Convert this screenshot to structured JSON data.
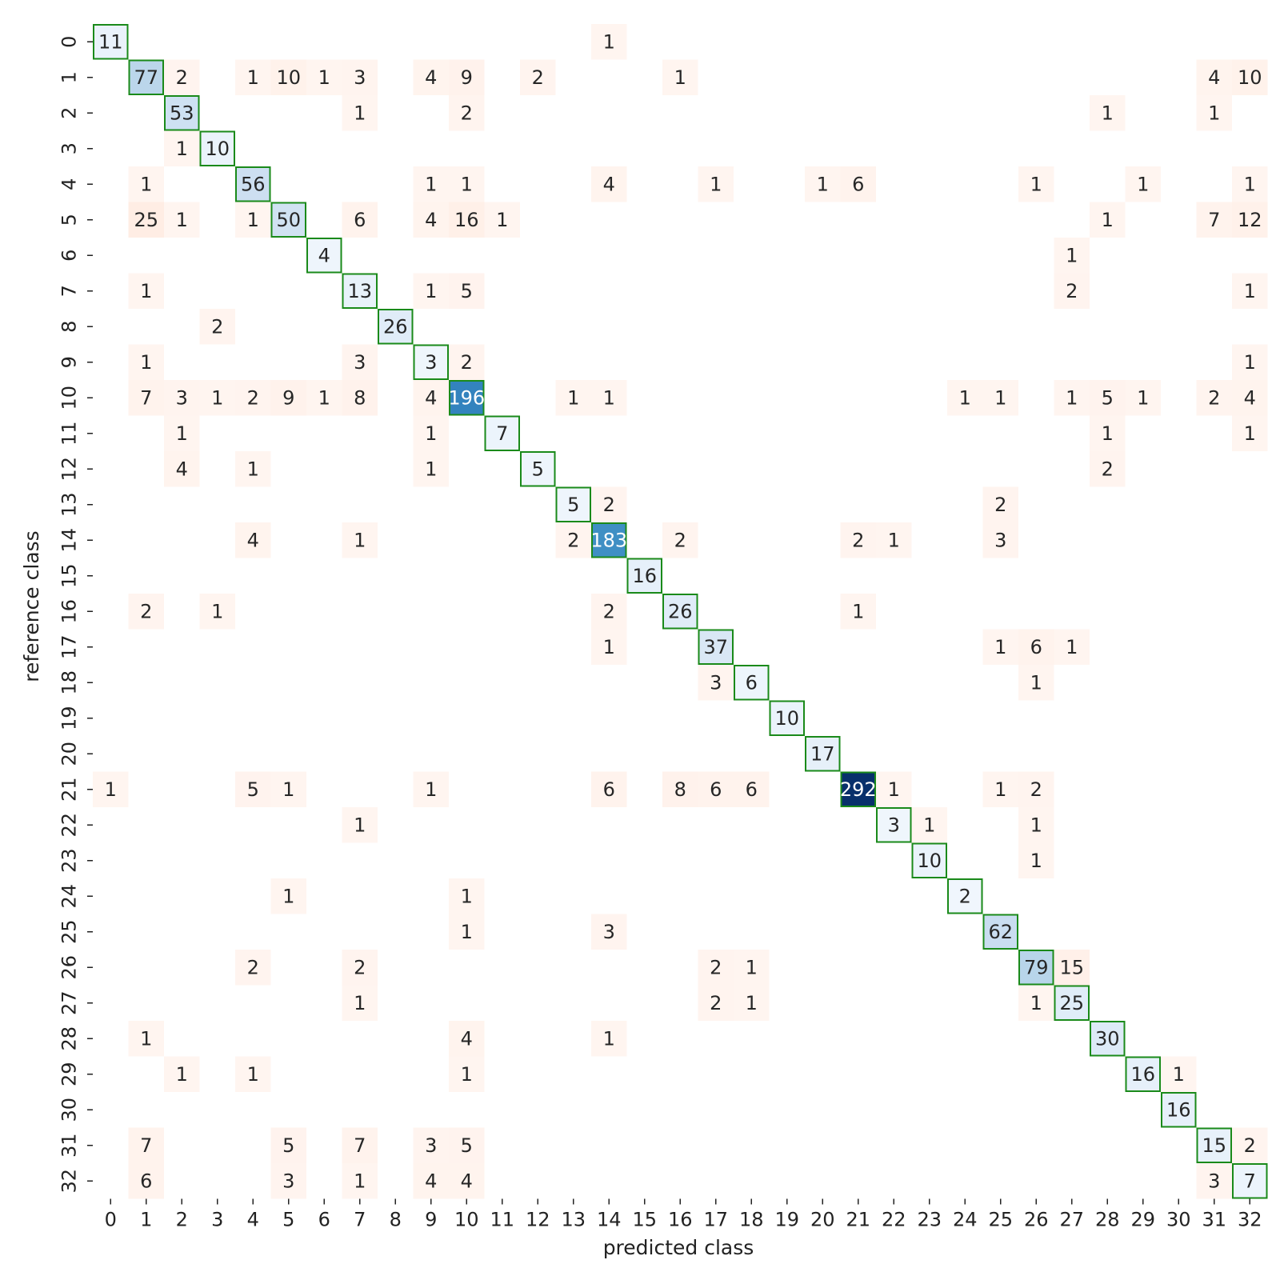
{
  "chart_data": {
    "type": "heatmap",
    "xlabel": "predicted class",
    "ylabel": "reference class",
    "x_ticks": [
      "0",
      "1",
      "2",
      "3",
      "4",
      "5",
      "6",
      "7",
      "8",
      "9",
      "10",
      "11",
      "12",
      "13",
      "14",
      "15",
      "16",
      "17",
      "18",
      "19",
      "20",
      "21",
      "22",
      "23",
      "24",
      "25",
      "26",
      "27",
      "28",
      "29",
      "30",
      "31",
      "32"
    ],
    "y_ticks": [
      "0",
      "1",
      "2",
      "3",
      "4",
      "5",
      "6",
      "7",
      "8",
      "9",
      "10",
      "11",
      "12",
      "13",
      "14",
      "15",
      "16",
      "17",
      "18",
      "19",
      "20",
      "21",
      "22",
      "23",
      "24",
      "25",
      "26",
      "27",
      "28",
      "29",
      "30",
      "31",
      "32"
    ],
    "diagonal_colormap": "Blues",
    "off_diagonal_colormap": "Reds",
    "diagonal_outline_color": "#1a8a1a",
    "diagonal_max_color": "#08306b",
    "off_diagonal_color": "#fff3ee",
    "values": [
      {
        "row": 0,
        "col": 0,
        "value": 11
      },
      {
        "row": 0,
        "col": 14,
        "value": 1
      },
      {
        "row": 1,
        "col": 1,
        "value": 77
      },
      {
        "row": 1,
        "col": 2,
        "value": 2
      },
      {
        "row": 1,
        "col": 4,
        "value": 1
      },
      {
        "row": 1,
        "col": 5,
        "value": 10
      },
      {
        "row": 1,
        "col": 6,
        "value": 1
      },
      {
        "row": 1,
        "col": 7,
        "value": 3
      },
      {
        "row": 1,
        "col": 9,
        "value": 4
      },
      {
        "row": 1,
        "col": 10,
        "value": 9
      },
      {
        "row": 1,
        "col": 12,
        "value": 2
      },
      {
        "row": 1,
        "col": 16,
        "value": 1
      },
      {
        "row": 1,
        "col": 31,
        "value": 4
      },
      {
        "row": 1,
        "col": 32,
        "value": 10
      },
      {
        "row": 2,
        "col": 2,
        "value": 53
      },
      {
        "row": 2,
        "col": 7,
        "value": 1
      },
      {
        "row": 2,
        "col": 10,
        "value": 2
      },
      {
        "row": 2,
        "col": 28,
        "value": 1
      },
      {
        "row": 2,
        "col": 31,
        "value": 1
      },
      {
        "row": 3,
        "col": 2,
        "value": 1
      },
      {
        "row": 3,
        "col": 3,
        "value": 10
      },
      {
        "row": 4,
        "col": 1,
        "value": 1
      },
      {
        "row": 4,
        "col": 4,
        "value": 56
      },
      {
        "row": 4,
        "col": 9,
        "value": 1
      },
      {
        "row": 4,
        "col": 10,
        "value": 1
      },
      {
        "row": 4,
        "col": 14,
        "value": 4
      },
      {
        "row": 4,
        "col": 17,
        "value": 1
      },
      {
        "row": 4,
        "col": 20,
        "value": 1
      },
      {
        "row": 4,
        "col": 21,
        "value": 6
      },
      {
        "row": 4,
        "col": 26,
        "value": 1
      },
      {
        "row": 4,
        "col": 29,
        "value": 1
      },
      {
        "row": 4,
        "col": 32,
        "value": 1
      },
      {
        "row": 5,
        "col": 1,
        "value": 25
      },
      {
        "row": 5,
        "col": 2,
        "value": 1
      },
      {
        "row": 5,
        "col": 4,
        "value": 1
      },
      {
        "row": 5,
        "col": 5,
        "value": 50
      },
      {
        "row": 5,
        "col": 7,
        "value": 6
      },
      {
        "row": 5,
        "col": 9,
        "value": 4
      },
      {
        "row": 5,
        "col": 10,
        "value": 16
      },
      {
        "row": 5,
        "col": 11,
        "value": 1
      },
      {
        "row": 5,
        "col": 28,
        "value": 1
      },
      {
        "row": 5,
        "col": 31,
        "value": 7
      },
      {
        "row": 5,
        "col": 32,
        "value": 12
      },
      {
        "row": 6,
        "col": 6,
        "value": 4
      },
      {
        "row": 6,
        "col": 27,
        "value": 1
      },
      {
        "row": 7,
        "col": 1,
        "value": 1
      },
      {
        "row": 7,
        "col": 7,
        "value": 13
      },
      {
        "row": 7,
        "col": 9,
        "value": 1
      },
      {
        "row": 7,
        "col": 10,
        "value": 5
      },
      {
        "row": 7,
        "col": 27,
        "value": 2
      },
      {
        "row": 7,
        "col": 32,
        "value": 1
      },
      {
        "row": 8,
        "col": 3,
        "value": 2
      },
      {
        "row": 8,
        "col": 8,
        "value": 26
      },
      {
        "row": 9,
        "col": 1,
        "value": 1
      },
      {
        "row": 9,
        "col": 7,
        "value": 3
      },
      {
        "row": 9,
        "col": 9,
        "value": 3
      },
      {
        "row": 9,
        "col": 10,
        "value": 2
      },
      {
        "row": 9,
        "col": 32,
        "value": 1
      },
      {
        "row": 10,
        "col": 1,
        "value": 7
      },
      {
        "row": 10,
        "col": 2,
        "value": 3
      },
      {
        "row": 10,
        "col": 3,
        "value": 1
      },
      {
        "row": 10,
        "col": 4,
        "value": 2
      },
      {
        "row": 10,
        "col": 5,
        "value": 9
      },
      {
        "row": 10,
        "col": 6,
        "value": 1
      },
      {
        "row": 10,
        "col": 7,
        "value": 8
      },
      {
        "row": 10,
        "col": 9,
        "value": 4
      },
      {
        "row": 10,
        "col": 10,
        "value": 196
      },
      {
        "row": 10,
        "col": 13,
        "value": 1
      },
      {
        "row": 10,
        "col": 14,
        "value": 1
      },
      {
        "row": 10,
        "col": 24,
        "value": 1
      },
      {
        "row": 10,
        "col": 25,
        "value": 1
      },
      {
        "row": 10,
        "col": 27,
        "value": 1
      },
      {
        "row": 10,
        "col": 28,
        "value": 5
      },
      {
        "row": 10,
        "col": 29,
        "value": 1
      },
      {
        "row": 10,
        "col": 31,
        "value": 2
      },
      {
        "row": 10,
        "col": 32,
        "value": 4
      },
      {
        "row": 11,
        "col": 2,
        "value": 1
      },
      {
        "row": 11,
        "col": 9,
        "value": 1
      },
      {
        "row": 11,
        "col": 11,
        "value": 7
      },
      {
        "row": 11,
        "col": 28,
        "value": 1
      },
      {
        "row": 11,
        "col": 32,
        "value": 1
      },
      {
        "row": 12,
        "col": 2,
        "value": 4
      },
      {
        "row": 12,
        "col": 4,
        "value": 1
      },
      {
        "row": 12,
        "col": 9,
        "value": 1
      },
      {
        "row": 12,
        "col": 12,
        "value": 5
      },
      {
        "row": 12,
        "col": 28,
        "value": 2
      },
      {
        "row": 13,
        "col": 13,
        "value": 5
      },
      {
        "row": 13,
        "col": 14,
        "value": 2
      },
      {
        "row": 13,
        "col": 25,
        "value": 2
      },
      {
        "row": 14,
        "col": 4,
        "value": 4
      },
      {
        "row": 14,
        "col": 7,
        "value": 1
      },
      {
        "row": 14,
        "col": 13,
        "value": 2
      },
      {
        "row": 14,
        "col": 14,
        "value": 183
      },
      {
        "row": 14,
        "col": 16,
        "value": 2
      },
      {
        "row": 14,
        "col": 21,
        "value": 2
      },
      {
        "row": 14,
        "col": 22,
        "value": 1
      },
      {
        "row": 14,
        "col": 25,
        "value": 3
      },
      {
        "row": 15,
        "col": 15,
        "value": 16
      },
      {
        "row": 16,
        "col": 1,
        "value": 2
      },
      {
        "row": 16,
        "col": 3,
        "value": 1
      },
      {
        "row": 16,
        "col": 14,
        "value": 2
      },
      {
        "row": 16,
        "col": 16,
        "value": 26
      },
      {
        "row": 16,
        "col": 21,
        "value": 1
      },
      {
        "row": 17,
        "col": 14,
        "value": 1
      },
      {
        "row": 17,
        "col": 17,
        "value": 37
      },
      {
        "row": 17,
        "col": 25,
        "value": 1
      },
      {
        "row": 17,
        "col": 26,
        "value": 6
      },
      {
        "row": 17,
        "col": 27,
        "value": 1
      },
      {
        "row": 18,
        "col": 17,
        "value": 3
      },
      {
        "row": 18,
        "col": 18,
        "value": 6
      },
      {
        "row": 18,
        "col": 26,
        "value": 1
      },
      {
        "row": 19,
        "col": 19,
        "value": 10
      },
      {
        "row": 20,
        "col": 20,
        "value": 17
      },
      {
        "row": 21,
        "col": 0,
        "value": 1
      },
      {
        "row": 21,
        "col": 4,
        "value": 5
      },
      {
        "row": 21,
        "col": 5,
        "value": 1
      },
      {
        "row": 21,
        "col": 9,
        "value": 1
      },
      {
        "row": 21,
        "col": 14,
        "value": 6
      },
      {
        "row": 21,
        "col": 16,
        "value": 8
      },
      {
        "row": 21,
        "col": 17,
        "value": 6
      },
      {
        "row": 21,
        "col": 18,
        "value": 6
      },
      {
        "row": 21,
        "col": 21,
        "value": 292
      },
      {
        "row": 21,
        "col": 22,
        "value": 1
      },
      {
        "row": 21,
        "col": 25,
        "value": 1
      },
      {
        "row": 21,
        "col": 26,
        "value": 2
      },
      {
        "row": 22,
        "col": 7,
        "value": 1
      },
      {
        "row": 22,
        "col": 22,
        "value": 3
      },
      {
        "row": 22,
        "col": 23,
        "value": 1
      },
      {
        "row": 22,
        "col": 26,
        "value": 1
      },
      {
        "row": 23,
        "col": 23,
        "value": 10
      },
      {
        "row": 23,
        "col": 26,
        "value": 1
      },
      {
        "row": 24,
        "col": 5,
        "value": 1
      },
      {
        "row": 24,
        "col": 10,
        "value": 1
      },
      {
        "row": 24,
        "col": 24,
        "value": 2
      },
      {
        "row": 25,
        "col": 10,
        "value": 1
      },
      {
        "row": 25,
        "col": 14,
        "value": 3
      },
      {
        "row": 25,
        "col": 25,
        "value": 62
      },
      {
        "row": 26,
        "col": 4,
        "value": 2
      },
      {
        "row": 26,
        "col": 7,
        "value": 2
      },
      {
        "row": 26,
        "col": 17,
        "value": 2
      },
      {
        "row": 26,
        "col": 18,
        "value": 1
      },
      {
        "row": 26,
        "col": 26,
        "value": 79
      },
      {
        "row": 26,
        "col": 27,
        "value": 15
      },
      {
        "row": 27,
        "col": 7,
        "value": 1
      },
      {
        "row": 27,
        "col": 17,
        "value": 2
      },
      {
        "row": 27,
        "col": 18,
        "value": 1
      },
      {
        "row": 27,
        "col": 26,
        "value": 1
      },
      {
        "row": 27,
        "col": 27,
        "value": 25
      },
      {
        "row": 28,
        "col": 1,
        "value": 1
      },
      {
        "row": 28,
        "col": 10,
        "value": 4
      },
      {
        "row": 28,
        "col": 14,
        "value": 1
      },
      {
        "row": 28,
        "col": 28,
        "value": 30
      },
      {
        "row": 29,
        "col": 2,
        "value": 1
      },
      {
        "row": 29,
        "col": 4,
        "value": 1
      },
      {
        "row": 29,
        "col": 10,
        "value": 1
      },
      {
        "row": 29,
        "col": 29,
        "value": 16
      },
      {
        "row": 29,
        "col": 30,
        "value": 1
      },
      {
        "row": 30,
        "col": 30,
        "value": 16
      },
      {
        "row": 31,
        "col": 1,
        "value": 7
      },
      {
        "row": 31,
        "col": 5,
        "value": 5
      },
      {
        "row": 31,
        "col": 7,
        "value": 7
      },
      {
        "row": 31,
        "col": 9,
        "value": 3
      },
      {
        "row": 31,
        "col": 10,
        "value": 5
      },
      {
        "row": 31,
        "col": 31,
        "value": 15
      },
      {
        "row": 31,
        "col": 32,
        "value": 2
      },
      {
        "row": 32,
        "col": 1,
        "value": 6
      },
      {
        "row": 32,
        "col": 5,
        "value": 3
      },
      {
        "row": 32,
        "col": 7,
        "value": 1
      },
      {
        "row": 32,
        "col": 9,
        "value": 4
      },
      {
        "row": 32,
        "col": 10,
        "value": 4
      },
      {
        "row": 32,
        "col": 31,
        "value": 3
      },
      {
        "row": 32,
        "col": 32,
        "value": 7
      }
    ]
  }
}
